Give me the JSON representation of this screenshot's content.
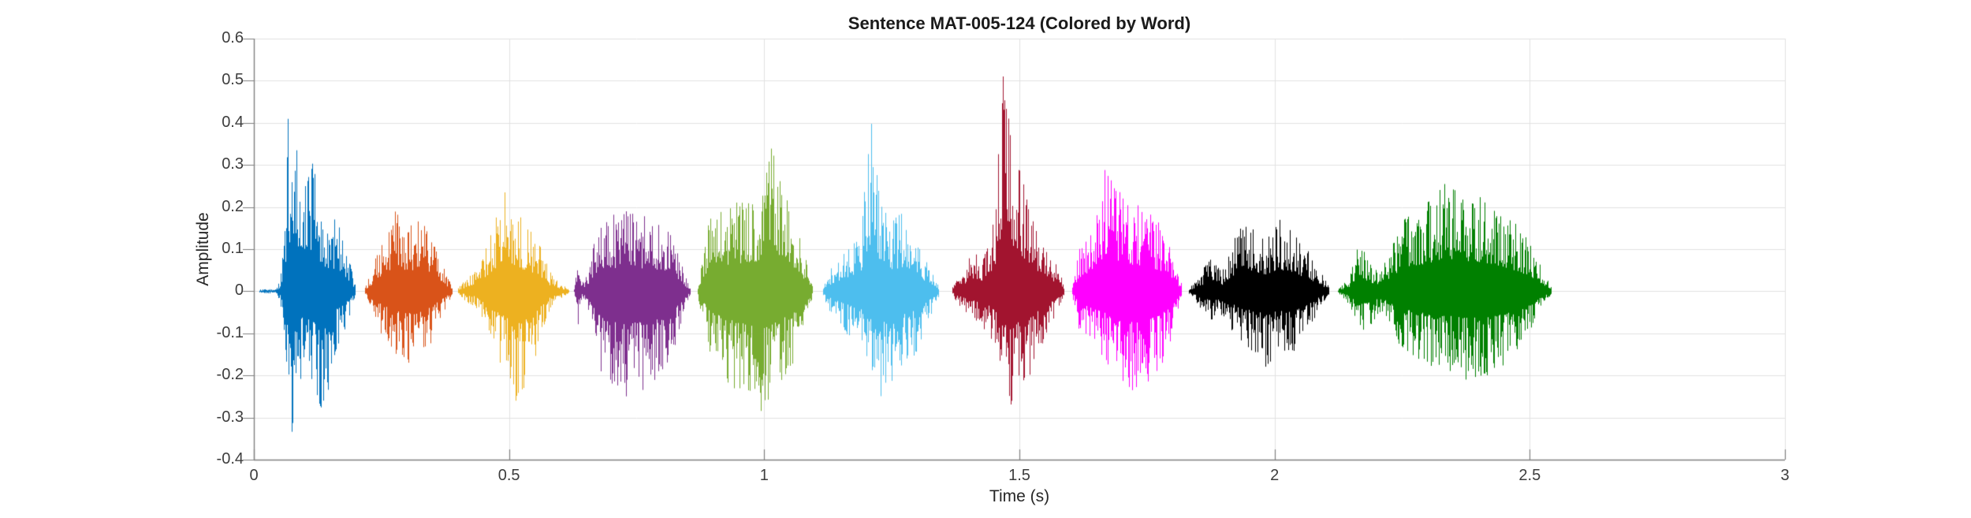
{
  "chart_data": {
    "type": "line",
    "title": "Sentence MAT-005-124 (Colored by Word)",
    "xlabel": "Time (s)",
    "ylabel": "Amplitude",
    "xlim": [
      0,
      3
    ],
    "ylim": [
      -0.4,
      0.6
    ],
    "grid": true,
    "legend": "none",
    "x_ticks": [
      0,
      0.5,
      1,
      1.5,
      2,
      2.5,
      3
    ],
    "x_tick_labels": [
      "0",
      "0.5",
      "1",
      "1.5",
      "2",
      "2.5",
      "3"
    ],
    "y_ticks": [
      0.6,
      0.5,
      0.4,
      0.3,
      0.2,
      0.1,
      0,
      -0.1,
      -0.2,
      -0.3,
      -0.4
    ],
    "y_tick_labels": [
      "0.6",
      "0.5",
      "0.4",
      "0.3",
      "0.2",
      "0.1",
      "0",
      "-0.1",
      "-0.2",
      "-0.3",
      "-0.4"
    ],
    "axis_color": "#808080",
    "grid_color": "#e2e2e2",
    "text_color": "#262626",
    "background_color": "#ffffff",
    "series_description": "Speech waveform of one sentence; each word drawn in its own color",
    "segments": [
      {
        "word_index": 1,
        "color": "#0072BD",
        "t_start": 0.01,
        "t_end": 0.199,
        "peak": 0.42,
        "trough": -0.335,
        "envelope": [
          [
            0,
            0.004,
            0.004
          ],
          [
            0.18,
            0.006,
            0.006
          ],
          [
            0.22,
            0.03,
            0.03
          ],
          [
            0.26,
            0.13,
            0.1
          ],
          [
            0.3,
            0.42,
            0.25
          ],
          [
            0.34,
            0.3,
            0.335
          ],
          [
            0.4,
            0.36,
            0.22
          ],
          [
            0.48,
            0.28,
            0.2
          ],
          [
            0.56,
            0.32,
            0.24
          ],
          [
            0.64,
            0.22,
            0.28
          ],
          [
            0.72,
            0.16,
            0.24
          ],
          [
            0.8,
            0.18,
            0.14
          ],
          [
            0.88,
            0.12,
            0.1
          ],
          [
            0.95,
            0.06,
            0.05
          ],
          [
            1,
            0.01,
            0.01
          ]
        ]
      },
      {
        "word_index": 2,
        "color": "#D95319",
        "t_start": 0.217,
        "t_end": 0.388,
        "peak": 0.19,
        "trough": -0.17,
        "envelope": [
          [
            0,
            0.01,
            0.01
          ],
          [
            0.08,
            0.05,
            0.04
          ],
          [
            0.2,
            0.13,
            0.11
          ],
          [
            0.35,
            0.19,
            0.15
          ],
          [
            0.5,
            0.16,
            0.17
          ],
          [
            0.62,
            0.17,
            0.15
          ],
          [
            0.75,
            0.14,
            0.13
          ],
          [
            0.88,
            0.07,
            0.06
          ],
          [
            1,
            0.01,
            0.01
          ]
        ]
      },
      {
        "word_index": 3,
        "color": "#EDB120",
        "t_start": 0.4,
        "t_end": 0.617,
        "peak": 0.235,
        "trough": -0.26,
        "envelope": [
          [
            0,
            0.01,
            0.01
          ],
          [
            0.1,
            0.035,
            0.03
          ],
          [
            0.2,
            0.06,
            0.05
          ],
          [
            0.3,
            0.15,
            0.13
          ],
          [
            0.42,
            0.235,
            0.2
          ],
          [
            0.52,
            0.19,
            0.26
          ],
          [
            0.62,
            0.16,
            0.22
          ],
          [
            0.72,
            0.12,
            0.14
          ],
          [
            0.82,
            0.05,
            0.05
          ],
          [
            0.92,
            0.02,
            0.02
          ],
          [
            1,
            0.005,
            0.005
          ]
        ]
      },
      {
        "word_index": 4,
        "color": "#7E2F8E",
        "t_start": 0.627,
        "t_end": 0.855,
        "peak": 0.19,
        "trough": -0.25,
        "envelope": [
          [
            0,
            0.002,
            0.002
          ],
          [
            0.03,
            0.09,
            0.09
          ],
          [
            0.06,
            0.02,
            0.02
          ],
          [
            0.12,
            0.04,
            0.04
          ],
          [
            0.2,
            0.16,
            0.18
          ],
          [
            0.3,
            0.18,
            0.22
          ],
          [
            0.45,
            0.19,
            0.25
          ],
          [
            0.6,
            0.18,
            0.24
          ],
          [
            0.72,
            0.17,
            0.22
          ],
          [
            0.85,
            0.13,
            0.15
          ],
          [
            0.95,
            0.04,
            0.04
          ],
          [
            1,
            0.01,
            0.01
          ]
        ]
      },
      {
        "word_index": 5,
        "color": "#77AC30",
        "t_start": 0.869,
        "t_end": 1.094,
        "peak": 0.34,
        "trough": -0.285,
        "envelope": [
          [
            0,
            0.01,
            0.01
          ],
          [
            0.1,
            0.17,
            0.15
          ],
          [
            0.25,
            0.2,
            0.22
          ],
          [
            0.4,
            0.22,
            0.25
          ],
          [
            0.55,
            0.24,
            0.285
          ],
          [
            0.64,
            0.34,
            0.26
          ],
          [
            0.72,
            0.28,
            0.22
          ],
          [
            0.82,
            0.2,
            0.18
          ],
          [
            0.92,
            0.1,
            0.08
          ],
          [
            1,
            0.015,
            0.015
          ]
        ]
      },
      {
        "word_index": 6,
        "color": "#4DBEEE",
        "t_start": 1.114,
        "t_end": 1.341,
        "peak": 0.4,
        "trough": -0.25,
        "envelope": [
          [
            0,
            0.01,
            0.01
          ],
          [
            0.08,
            0.06,
            0.06
          ],
          [
            0.2,
            0.1,
            0.1
          ],
          [
            0.32,
            0.13,
            0.13
          ],
          [
            0.42,
            0.4,
            0.2
          ],
          [
            0.5,
            0.22,
            0.25
          ],
          [
            0.6,
            0.17,
            0.22
          ],
          [
            0.7,
            0.19,
            0.18
          ],
          [
            0.8,
            0.12,
            0.15
          ],
          [
            0.9,
            0.07,
            0.08
          ],
          [
            1,
            0.015,
            0.015
          ]
        ]
      },
      {
        "word_index": 7,
        "color": "#A2142F",
        "t_start": 1.368,
        "t_end": 1.588,
        "peak": 0.515,
        "trough": -0.27,
        "envelope": [
          [
            0,
            0.01,
            0.01
          ],
          [
            0.1,
            0.05,
            0.05
          ],
          [
            0.18,
            0.1,
            0.07
          ],
          [
            0.28,
            0.08,
            0.09
          ],
          [
            0.38,
            0.2,
            0.14
          ],
          [
            0.45,
            0.515,
            0.2
          ],
          [
            0.52,
            0.38,
            0.27
          ],
          [
            0.6,
            0.3,
            0.24
          ],
          [
            0.7,
            0.18,
            0.2
          ],
          [
            0.8,
            0.14,
            0.13
          ],
          [
            0.9,
            0.08,
            0.07
          ],
          [
            1,
            0.015,
            0.015
          ]
        ]
      },
      {
        "word_index": 8,
        "color": "#FF00FF",
        "t_start": 1.603,
        "t_end": 1.817,
        "peak": 0.29,
        "trough": -0.235,
        "envelope": [
          [
            0,
            0.01,
            0.01
          ],
          [
            0.06,
            0.1,
            0.09
          ],
          [
            0.18,
            0.14,
            0.12
          ],
          [
            0.3,
            0.29,
            0.17
          ],
          [
            0.42,
            0.24,
            0.22
          ],
          [
            0.55,
            0.21,
            0.235
          ],
          [
            0.68,
            0.2,
            0.22
          ],
          [
            0.8,
            0.16,
            0.19
          ],
          [
            0.9,
            0.1,
            0.12
          ],
          [
            1,
            0.02,
            0.02
          ]
        ]
      },
      {
        "word_index": 9,
        "color": "#000000",
        "t_start": 1.832,
        "t_end": 2.106,
        "peak": 0.175,
        "trough": -0.18,
        "envelope": [
          [
            0,
            0.008,
            0.008
          ],
          [
            0.08,
            0.04,
            0.04
          ],
          [
            0.16,
            0.09,
            0.07
          ],
          [
            0.24,
            0.05,
            0.06
          ],
          [
            0.35,
            0.15,
            0.12
          ],
          [
            0.45,
            0.16,
            0.15
          ],
          [
            0.55,
            0.13,
            0.18
          ],
          [
            0.65,
            0.17,
            0.14
          ],
          [
            0.75,
            0.14,
            0.15
          ],
          [
            0.85,
            0.1,
            0.1
          ],
          [
            0.94,
            0.05,
            0.04
          ],
          [
            1,
            0.01,
            0.01
          ]
        ]
      },
      {
        "word_index": 10,
        "color": "#008000",
        "t_start": 2.124,
        "t_end": 2.542,
        "peak": 0.255,
        "trough": -0.21,
        "envelope": [
          [
            0,
            0.005,
            0.005
          ],
          [
            0.05,
            0.03,
            0.03
          ],
          [
            0.1,
            0.13,
            0.1
          ],
          [
            0.14,
            0.07,
            0.09
          ],
          [
            0.2,
            0.05,
            0.05
          ],
          [
            0.3,
            0.17,
            0.14
          ],
          [
            0.4,
            0.21,
            0.17
          ],
          [
            0.5,
            0.255,
            0.19
          ],
          [
            0.6,
            0.24,
            0.21
          ],
          [
            0.7,
            0.22,
            0.2
          ],
          [
            0.8,
            0.18,
            0.17
          ],
          [
            0.9,
            0.12,
            0.1
          ],
          [
            0.96,
            0.05,
            0.04
          ],
          [
            1,
            0.008,
            0.008
          ]
        ]
      }
    ]
  }
}
